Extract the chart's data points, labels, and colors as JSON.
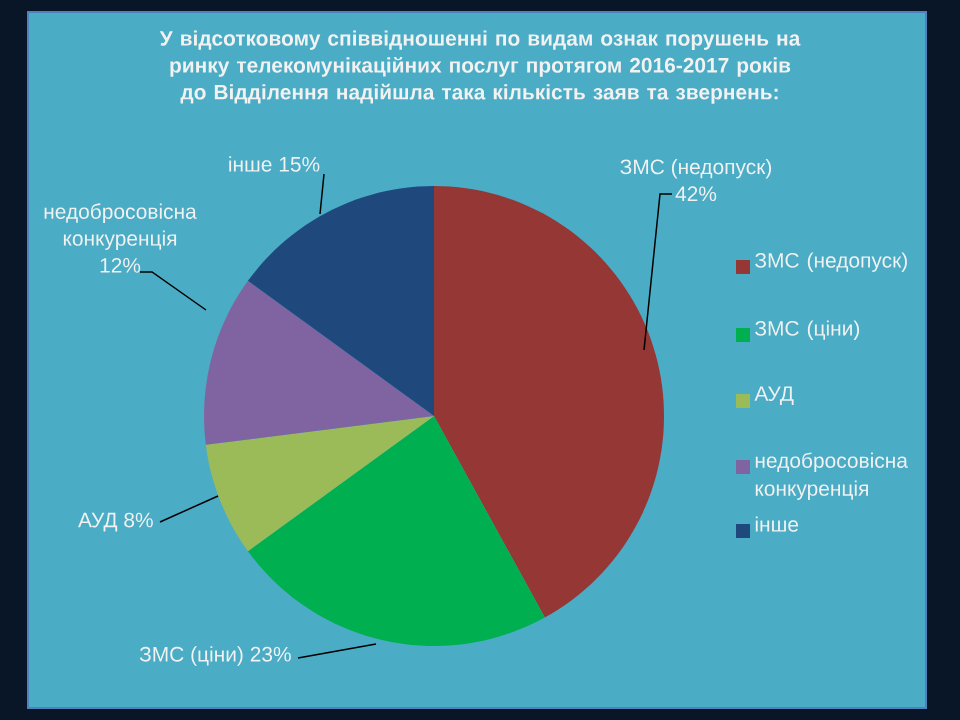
{
  "chart_data": {
    "type": "pie",
    "title": "У відсотковому співвідношенні по видам ознак порушень на ринку телекомунікаційних послуг протягом 2016-2017 років до Відділення надійшла така кількість заяв та звернень:",
    "categories": [
      "ЗМС (недопуск)",
      "ЗМС (ціни)",
      "АУД",
      "недобросовісна конкуренція",
      "інше"
    ],
    "values": [
      42,
      23,
      8,
      12,
      15
    ],
    "value_labels": [
      "42%",
      "23%",
      "8%",
      "12%",
      "15%"
    ],
    "colors": [
      "#953735",
      "#00b050",
      "#9bbb59",
      "#8064a2",
      "#1f497d"
    ],
    "legend": "right"
  }
}
